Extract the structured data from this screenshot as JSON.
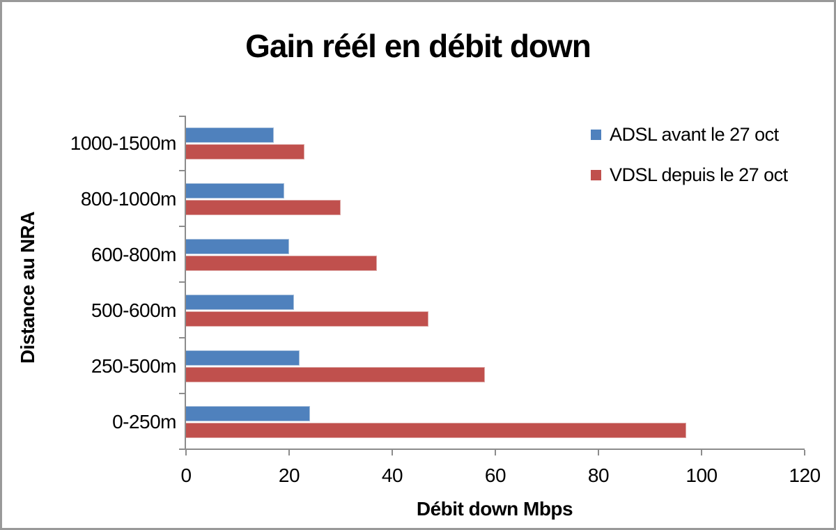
{
  "frame": {
    "border_color": "#999999",
    "background": "#ffffff"
  },
  "chart_data": {
    "type": "bar",
    "orientation": "horizontal",
    "title": "Gain réél en débit down",
    "xlabel": "Débit down Mbps",
    "ylabel": "Distance au NRA",
    "categories": [
      "1000-1500m",
      "800-1000m",
      "600-800m",
      "500-600m",
      "250-500m",
      "0-250m"
    ],
    "categories_order": "top-to-bottom",
    "series": [
      {
        "name": "ADSL avant le 27 oct",
        "color": "#4f81bd",
        "border_color": "#a8c0dc",
        "values": [
          17,
          19,
          20,
          21,
          22,
          24
        ]
      },
      {
        "name": "VDSL depuis le 27 oct",
        "color": "#c0504d",
        "border_color": "#dda5a3",
        "values": [
          23,
          30,
          37,
          47,
          58,
          97
        ]
      }
    ],
    "xlim": [
      0,
      120
    ],
    "xticks": [
      0,
      20,
      40,
      60,
      80,
      100,
      120
    ],
    "grid": false,
    "legend_position": "top-right-inside",
    "axis_color": "#8c8c8c"
  }
}
